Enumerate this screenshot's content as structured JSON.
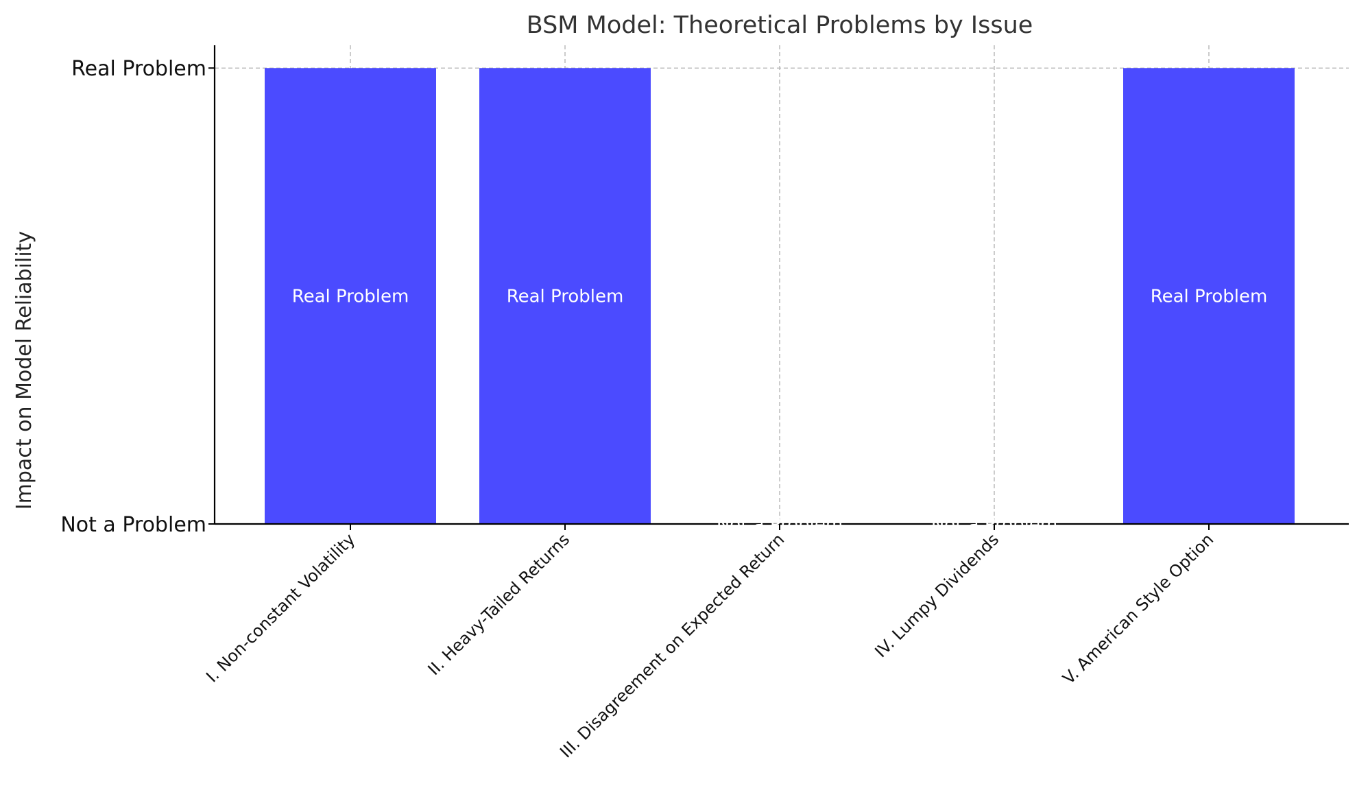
{
  "chart_data": {
    "type": "bar",
    "title": "BSM Model: Theoretical Problems by Issue",
    "xlabel": "",
    "ylabel": "Impact on Model Reliability",
    "categories": [
      "I. Non-constant Volatility",
      "II. Heavy-Tailed Returns",
      "III. Disagreement on Expected Return",
      "IV. Lumpy Dividends",
      "V. American Style Option"
    ],
    "values": [
      1,
      1,
      0,
      0,
      1
    ],
    "bar_labels": [
      "Real Problem",
      "Real Problem",
      "Not a Problem",
      "Not a Problem",
      "Real Problem"
    ],
    "yticks": [
      {
        "value": 0,
        "label": "Not a Problem"
      },
      {
        "value": 1,
        "label": "Real Problem"
      }
    ],
    "ylim": [
      0,
      1.05
    ],
    "grid": true,
    "bar_color": "#4b4bff",
    "bar_label_color": "#ffffff"
  }
}
